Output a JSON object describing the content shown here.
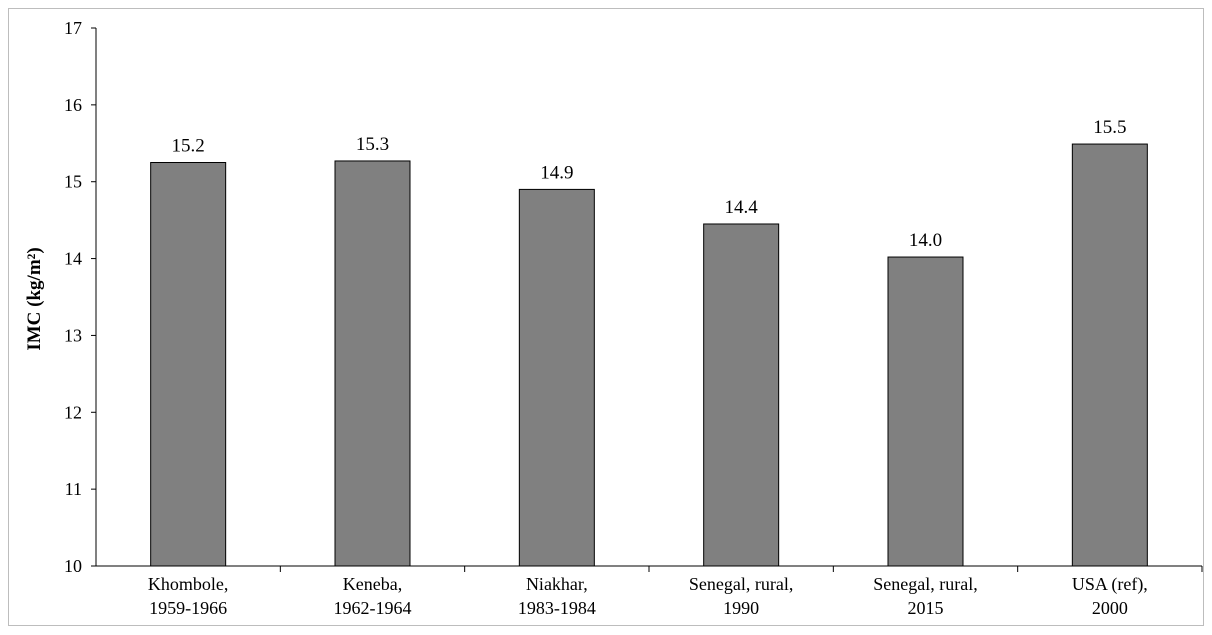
{
  "chart_data": {
    "type": "bar",
    "title": "",
    "xlabel": "",
    "ylabel": "IMC (kg/m²)",
    "ylim": [
      10,
      17
    ],
    "yticks": [
      10,
      11,
      12,
      13,
      14,
      15,
      16,
      17
    ],
    "categories": [
      [
        "Khombole,",
        "1959-1966"
      ],
      [
        "Keneba,",
        "1962-1964"
      ],
      [
        "Niakhar,",
        "1983-1984"
      ],
      [
        "Senegal, rural,",
        "1990"
      ],
      [
        "Senegal, rural,",
        "2015"
      ],
      [
        "USA (ref),",
        "2000"
      ]
    ],
    "values": [
      15.25,
      15.27,
      14.9,
      14.45,
      14.02,
      15.49
    ],
    "data_labels": [
      "15.2",
      "15.3",
      "14.9",
      "14.4",
      "14.0",
      "15.5"
    ],
    "bar_color": "#808080",
    "bar_edge_color": "#000000",
    "grid": false,
    "legend": "none"
  }
}
